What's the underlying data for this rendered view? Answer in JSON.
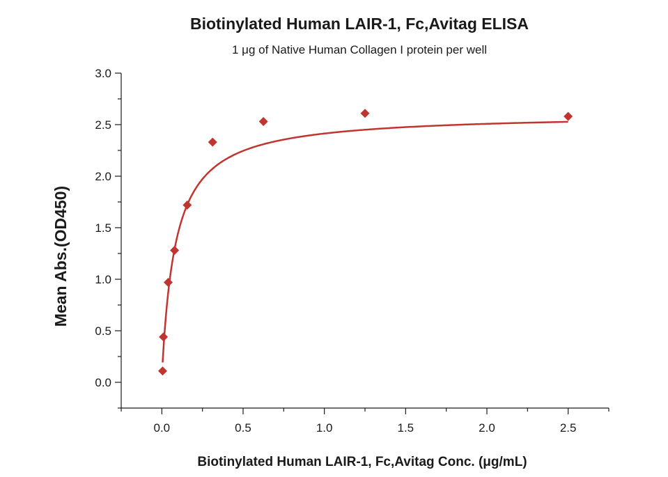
{
  "chart_data": {
    "type": "scatter",
    "title": "Biotinylated Human LAIR-1, Fc,Avitag ELISA",
    "subtitle": "1 μg of Native Human Collagen I protein per well",
    "xlabel": "Biotinylated Human LAIR-1, Fc,Avitag Conc. (μg/mL)",
    "ylabel": "Mean Abs.(OD450)",
    "xlim": [
      -0.25,
      2.75
    ],
    "ylim": [
      -0.25,
      3.0
    ],
    "x_ticks": [
      0.0,
      0.5,
      1.0,
      1.5,
      2.0,
      2.5
    ],
    "x_tick_labels": [
      "0.0",
      "0.5",
      "1.0",
      "1.5",
      "2.0",
      "2.5"
    ],
    "y_ticks": [
      0.0,
      0.5,
      1.0,
      1.5,
      2.0,
      2.5,
      3.0
    ],
    "y_tick_labels": [
      "0.0",
      "0.5",
      "1.0",
      "1.5",
      "2.0",
      "2.5",
      "3.0"
    ],
    "grid": false,
    "color": "#c0352f",
    "points": [
      {
        "x": 0.0049,
        "y": 0.11
      },
      {
        "x": 0.0098,
        "y": 0.44
      },
      {
        "x": 0.0391,
        "y": 0.97
      },
      {
        "x": 0.0781,
        "y": 1.28
      },
      {
        "x": 0.1563,
        "y": 1.72
      },
      {
        "x": 0.3125,
        "y": 2.33
      },
      {
        "x": 0.625,
        "y": 2.53
      },
      {
        "x": 1.25,
        "y": 2.61
      },
      {
        "x": 2.5,
        "y": 2.58
      }
    ],
    "fit": {
      "model": "hyperbolic",
      "bottom": 0.05,
      "top": 2.61,
      "ec50": 0.083
    }
  }
}
